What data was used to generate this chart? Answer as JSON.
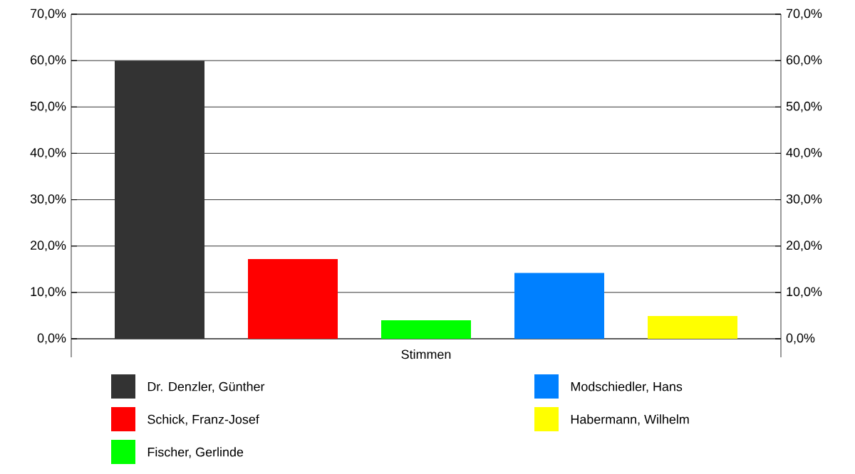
{
  "chart_data": {
    "type": "bar",
    "categories": [
      "Stimmen"
    ],
    "series": [
      {
        "name": "Dr. Denzler, Günther",
        "color": "#333333",
        "values": [
          60.0
        ]
      },
      {
        "name": "Schick, Franz-Josef",
        "color": "#ff0000",
        "values": [
          17.2
        ]
      },
      {
        "name": "Fischer, Gerlinde",
        "color": "#00ff00",
        "values": [
          4.0
        ]
      },
      {
        "name": "Modschiedler, Hans",
        "color": "#0080ff",
        "values": [
          14.2
        ]
      },
      {
        "name": "Habermann, Wilhelm",
        "color": "#ffff00",
        "values": [
          4.9
        ]
      }
    ],
    "ylim": [
      0,
      70
    ],
    "yticks": [
      {
        "value": 0,
        "label": "0,0%"
      },
      {
        "value": 10,
        "label": "10,0%"
      },
      {
        "value": 20,
        "label": "20,0%"
      },
      {
        "value": 30,
        "label": "30,0%"
      },
      {
        "value": 40,
        "label": "40,0%"
      },
      {
        "value": 50,
        "label": "50,0%"
      },
      {
        "value": 60,
        "label": "60,0%"
      },
      {
        "value": 70,
        "label": "70,0%"
      }
    ],
    "grid": "y",
    "legend": "bottom"
  }
}
